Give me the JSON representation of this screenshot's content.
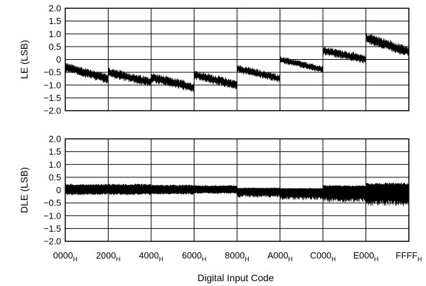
{
  "chart_data": [
    {
      "type": "line",
      "ylabel": "LE (LSB)",
      "ylim": [
        -2.0,
        2.0
      ],
      "yticks": [
        "2.0",
        "1.5",
        "1.0",
        "0.5",
        "0",
        "−0.5",
        "−1.0",
        "−1.5",
        "−2.0"
      ],
      "grid": true,
      "series": [
        {
          "segments": [
            {
              "x": [
                "0000",
                "2000"
              ],
              "y": [
                -0.3,
                -0.75
              ],
              "noise": 0.14
            },
            {
              "x": [
                "2000",
                "4000"
              ],
              "y": [
                -0.5,
                -0.9
              ],
              "noise": 0.14
            },
            {
              "x": [
                "4000",
                "6000"
              ],
              "y": [
                -0.7,
                -1.1
              ],
              "noise": 0.14
            },
            {
              "x": [
                "6000",
                "8000"
              ],
              "y": [
                -0.6,
                -1.0
              ],
              "noise": 0.14
            },
            {
              "x": [
                "8000",
                "A000"
              ],
              "y": [
                -0.35,
                -0.75
              ],
              "noise": 0.12
            },
            {
              "x": [
                "A000",
                "C000"
              ],
              "y": [
                0.0,
                -0.4
              ],
              "noise": 0.1
            },
            {
              "x": [
                "C000",
                "E000"
              ],
              "y": [
                0.35,
                0.0
              ],
              "noise": 0.13
            },
            {
              "x": [
                "E000",
                "FFFF"
              ],
              "y": [
                0.85,
                0.3
              ],
              "noise": 0.16
            }
          ]
        }
      ]
    },
    {
      "type": "line",
      "ylabel": "DLE (LSB)",
      "ylim": [
        -2.0,
        2.0
      ],
      "yticks": [
        "2.0",
        "1.5",
        "1.0",
        "0.5",
        "0",
        "−0.5",
        "−1.0",
        "−1.5",
        "−2.0"
      ],
      "grid": true,
      "series": [
        {
          "segments": [
            {
              "x": [
                "0000",
                "2000"
              ],
              "upper": 0.25,
              "lower": -0.2
            },
            {
              "x": [
                "2000",
                "4000"
              ],
              "upper": 0.25,
              "lower": -0.2
            },
            {
              "x": [
                "4000",
                "6000"
              ],
              "upper": 0.22,
              "lower": -0.18
            },
            {
              "x": [
                "6000",
                "8000"
              ],
              "upper": 0.2,
              "lower": -0.15
            },
            {
              "x": [
                "8000",
                "A000"
              ],
              "upper": 0.1,
              "lower": -0.3
            },
            {
              "x": [
                "A000",
                "C000"
              ],
              "upper": 0.08,
              "lower": -0.4
            },
            {
              "x": [
                "C000",
                "E000"
              ],
              "upper": 0.2,
              "lower": -0.5
            },
            {
              "x": [
                "E000",
                "FFFF"
              ],
              "upper": 0.3,
              "lower": -0.65
            }
          ],
          "spikes": [
            {
              "x": "C000",
              "y": 0.55
            },
            {
              "x": "A000",
              "y": 0.25
            }
          ]
        }
      ]
    }
  ],
  "x_axis": {
    "xlabel": "Digital Input Code",
    "ticks": [
      {
        "value": "0000",
        "sub": "H"
      },
      {
        "value": "2000",
        "sub": "H"
      },
      {
        "value": "4000",
        "sub": "H"
      },
      {
        "value": "6000",
        "sub": "H"
      },
      {
        "value": "8000",
        "sub": "H"
      },
      {
        "value": "A000",
        "sub": "H"
      },
      {
        "value": "C000",
        "sub": "H"
      },
      {
        "value": "E000",
        "sub": "H"
      },
      {
        "value": "FFFF",
        "sub": "H"
      }
    ]
  }
}
